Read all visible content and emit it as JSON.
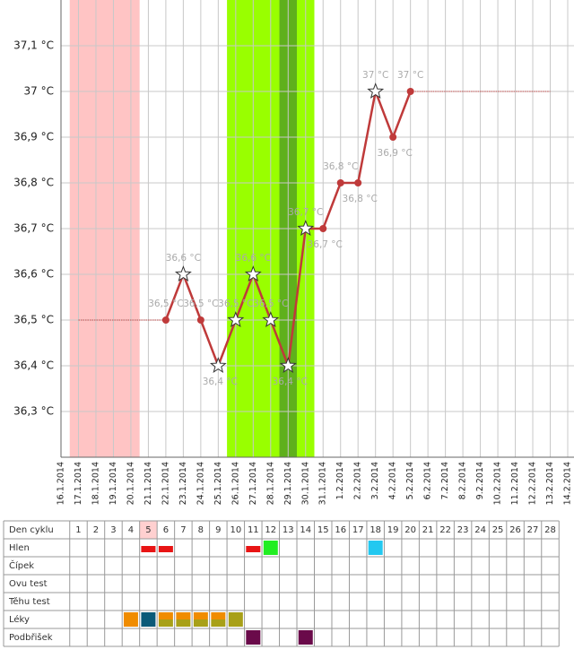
{
  "chart_data": {
    "type": "line",
    "categories": [
      "16.1.2014",
      "17.1.2014",
      "18.1.2014",
      "19.1.2014",
      "20.1.2014",
      "21.1.2014",
      "22.1.2014",
      "23.1.2014",
      "24.1.2014",
      "25.1.2014",
      "26.1.2014",
      "27.1.2014",
      "28.1.2014",
      "29.1.2014",
      "30.1.2014",
      "31.1.2014",
      "1.2.2014",
      "2.2.2014",
      "3.2.2014",
      "4.2.2014",
      "5.2.2014",
      "6.2.2014",
      "7.2.2014",
      "8.2.2014",
      "9.2.2014",
      "10.2.2014",
      "11.2.2014",
      "12.2.2014",
      "13.2.2014",
      "14.2.2014"
    ],
    "ylim": [
      36.2,
      37.2
    ],
    "yticks": [
      {
        "value": 36.3,
        "label": "36,3 °C"
      },
      {
        "value": 36.4,
        "label": "36,4 °C"
      },
      {
        "value": 36.5,
        "label": "36,5 °C"
      },
      {
        "value": 36.6,
        "label": "36,6 °C"
      },
      {
        "value": 36.7,
        "label": "36,7 °C"
      },
      {
        "value": 36.8,
        "label": "36,8 °C"
      },
      {
        "value": 36.9,
        "label": "36,9 °C"
      },
      {
        "value": 37.0,
        "label": "37 °C"
      },
      {
        "value": 37.1,
        "label": "37,1 °C"
      }
    ],
    "grid": true,
    "bands": [
      {
        "from": 1,
        "to": 4,
        "color": "#ffc4c4"
      },
      {
        "from": 10,
        "to": 14,
        "color": "#99ff00"
      },
      {
        "from": 13,
        "to": 13,
        "color": "#5fb01c"
      }
    ],
    "series": [
      {
        "color": "#bf3a3a",
        "style": "solid",
        "values": [
          null,
          null,
          null,
          null,
          null,
          null,
          36.5,
          36.6,
          36.5,
          36.4,
          36.5,
          36.6,
          36.5,
          36.4,
          36.7,
          36.7,
          36.8,
          36.8,
          37.0,
          36.9,
          37.0,
          null,
          null,
          null,
          null,
          null,
          null,
          null,
          null,
          null
        ],
        "value_labels": [
          null,
          null,
          null,
          null,
          null,
          null,
          "36,5 °C",
          "36,6 °C",
          "36,5 °C",
          "36,4 °C",
          "36,5 °C",
          "36,6 °C",
          "36,5 °C",
          "36,4 °C",
          "36,7 °C",
          "36,7 °C",
          "36,8 °C",
          "36,8 °C",
          "37 °C",
          "36,9 °C",
          "37 °C",
          null,
          null,
          null,
          null,
          null,
          null,
          null,
          null,
          null
        ],
        "markers": [
          null,
          null,
          null,
          null,
          null,
          null,
          "dot",
          "star",
          "dot",
          "star",
          "star",
          "star",
          "star",
          "star",
          "star",
          "dot",
          "dot",
          "dot",
          "star",
          "dot",
          "dot",
          null,
          null,
          null,
          null,
          null,
          null,
          null,
          null,
          null
        ]
      },
      {
        "color": "#c04848",
        "style": "dotted",
        "values": [
          null,
          36.5,
          36.5,
          36.5,
          36.5,
          36.5,
          36.5,
          null,
          null,
          null,
          null,
          null,
          null,
          null,
          null,
          null,
          null,
          null,
          null,
          null,
          null,
          null,
          null,
          null,
          null,
          null,
          null,
          null,
          null,
          null
        ]
      },
      {
        "color": "#c04848",
        "style": "dotted",
        "values": [
          null,
          null,
          null,
          null,
          null,
          null,
          null,
          null,
          null,
          null,
          null,
          null,
          null,
          null,
          null,
          null,
          null,
          null,
          null,
          null,
          37.0,
          37.0,
          37.0,
          37.0,
          37.0,
          37.0,
          37.0,
          37.0,
          37.0,
          null
        ]
      }
    ]
  },
  "table": {
    "header": "Den cyklu",
    "days": [
      1,
      2,
      3,
      4,
      5,
      6,
      7,
      8,
      9,
      10,
      11,
      12,
      13,
      14,
      15,
      16,
      17,
      18,
      19,
      20,
      21,
      22,
      23,
      24,
      25,
      26,
      27,
      28
    ],
    "highlight_day": 5,
    "highlight_color": "#ffd0d0",
    "rows": [
      {
        "label": "Hlen",
        "marks": [
          {
            "day": 5,
            "colors": [
              "#e81414"
            ],
            "shape": "bar"
          },
          {
            "day": 6,
            "colors": [
              "#e81414"
            ],
            "shape": "bar"
          },
          {
            "day": 11,
            "colors": [
              "#e81414"
            ],
            "shape": "bar"
          },
          {
            "day": 12,
            "colors": [
              "#22ee22"
            ],
            "shape": "block"
          },
          {
            "day": 18,
            "colors": [
              "#22c8f0"
            ],
            "shape": "block"
          }
        ]
      },
      {
        "label": "Čípek",
        "marks": []
      },
      {
        "label": "Ovu test",
        "marks": []
      },
      {
        "label": "Těhu test",
        "marks": []
      },
      {
        "label": "Léky",
        "marks": [
          {
            "day": 4,
            "colors": [
              "#f08c00"
            ],
            "shape": "block"
          },
          {
            "day": 5,
            "colors": [
              "#0b5a78"
            ],
            "shape": "block"
          },
          {
            "day": 6,
            "colors": [
              "#f08c00",
              "#a8a018"
            ],
            "shape": "block"
          },
          {
            "day": 7,
            "colors": [
              "#f08c00",
              "#a8a018"
            ],
            "shape": "block"
          },
          {
            "day": 8,
            "colors": [
              "#f08c00",
              "#a8a018"
            ],
            "shape": "block"
          },
          {
            "day": 9,
            "colors": [
              "#f08c00",
              "#a8a018"
            ],
            "shape": "block"
          },
          {
            "day": 10,
            "colors": [
              "#a8a018"
            ],
            "shape": "block"
          }
        ]
      },
      {
        "label": "Podbřišek",
        "marks": [
          {
            "day": 11,
            "colors": [
              "#6a0a4a"
            ],
            "shape": "block"
          },
          {
            "day": 14,
            "colors": [
              "#6a0a4a"
            ],
            "shape": "block"
          }
        ]
      }
    ]
  }
}
